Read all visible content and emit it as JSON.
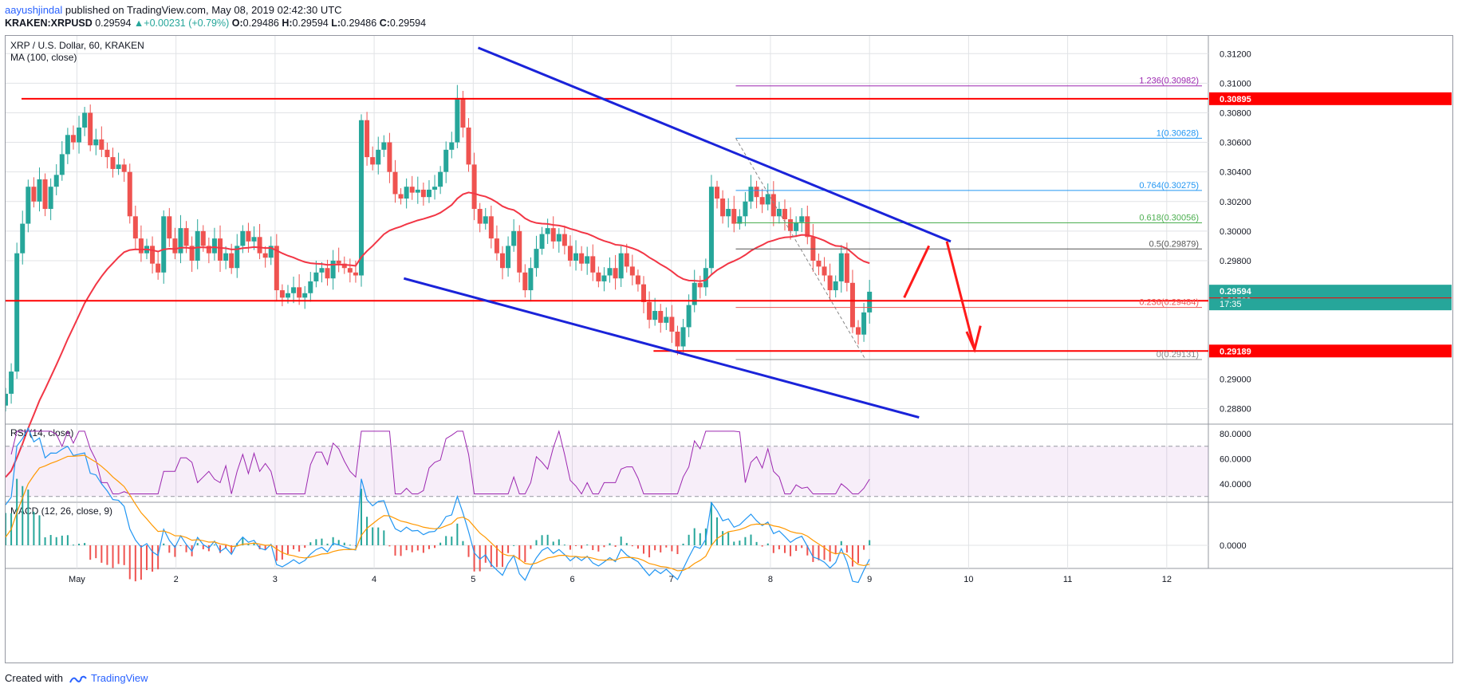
{
  "header": {
    "publisher": "aayushjindal",
    "published_text": "published on TradingView.com, May 08, 2019 02:42:30 UTC",
    "symbol": "KRAKEN:XRPUSD",
    "last": "0.29594",
    "change": "+0.00231 (+0.79%)",
    "ohlc_o_label": "O:",
    "ohlc_o": "0.29486",
    "ohlc_h_label": "H:",
    "ohlc_h": "0.29594",
    "ohlc_l_label": "L:",
    "ohlc_l": "0.29486",
    "ohlc_c_label": "C:",
    "ohlc_c": "0.29594"
  },
  "footer": {
    "created_with": "Created with",
    "brand": "TradingView"
  },
  "colors": {
    "bull": "#26a69a",
    "bear": "#ef5350",
    "ma": "#f23645",
    "channel": "#1a23d9",
    "support": "#ff0000",
    "fib": "#8896a5",
    "rsi": "#9c27b0",
    "macd": "#2196f3",
    "signal": "#ff9800",
    "grid": "#e1e3e6"
  },
  "chart_data": {
    "type": "candlestick",
    "title": "XRP / U.S. Dollar, 60, KRAKEN",
    "indicator_label": "MA (100, close)",
    "x_ticks": [
      "May",
      "2",
      "3",
      "4",
      "5",
      "6",
      "7",
      "8",
      "9",
      "10",
      "11",
      "12"
    ],
    "y_range": [
      0.287,
      0.3132
    ],
    "y_ticks": [
      "0.31200",
      "0.31000",
      "0.30800",
      "0.30600",
      "0.30400",
      "0.30200",
      "0.30000",
      "0.29800",
      "0.29000",
      "0.28800"
    ],
    "x_range_days": [
      -0.72,
      11.42
    ],
    "candles_x_days": [
      -0.72,
      3.99
    ],
    "candles_close": [
      0.289,
      0.2905,
      0.2985,
      0.3005,
      0.303,
      0.302,
      0.3035,
      0.3015,
      0.303,
      0.3038,
      0.3052,
      0.3065,
      0.306,
      0.307,
      0.308,
      0.3058,
      0.3062,
      0.3055,
      0.305,
      0.3042,
      0.3045,
      0.304,
      0.301,
      0.2995,
      0.2985,
      0.299,
      0.2978,
      0.2972,
      0.301,
      0.2995,
      0.2985,
      0.3002,
      0.299,
      0.298,
      0.3,
      0.299,
      0.2985,
      0.2995,
      0.298,
      0.2985,
      0.2975,
      0.299,
      0.3,
      0.2993,
      0.2996,
      0.2985,
      0.2982,
      0.299,
      0.296,
      0.2955,
      0.2958,
      0.2962,
      0.2955,
      0.2958,
      0.2966,
      0.2972,
      0.2975,
      0.2968,
      0.298,
      0.2978,
      0.2975,
      0.2972,
      0.297,
      0.3075,
      0.305,
      0.3045,
      0.3055,
      0.306,
      0.304,
      0.3025,
      0.3022,
      0.303,
      0.3026,
      0.3028,
      0.3023,
      0.3028,
      0.303,
      0.304,
      0.3055,
      0.306,
      0.309,
      0.307,
      0.3045,
      0.3015,
      0.3005,
      0.301,
      0.2995,
      0.2985,
      0.2975,
      0.299,
      0.3,
      0.2972,
      0.296,
      0.2975,
      0.2988,
      0.2998,
      0.3002,
      0.2993,
      0.2998,
      0.299,
      0.298,
      0.2985,
      0.2978,
      0.2983,
      0.2972,
      0.2966,
      0.297,
      0.2975,
      0.2968,
      0.2985,
      0.2976,
      0.297,
      0.2964,
      0.2952,
      0.294,
      0.2946,
      0.2938,
      0.2942,
      0.2932,
      0.2922,
      0.2935,
      0.295,
      0.2965,
      0.2962,
      0.2975,
      0.303,
      0.3022,
      0.301,
      0.3015,
      0.3005,
      0.301,
      0.302,
      0.303,
      0.3023,
      0.3018,
      0.3025,
      0.301,
      0.3015,
      0.3008,
      0.3,
      0.3006,
      0.301,
      0.2996,
      0.298,
      0.2976,
      0.297,
      0.296,
      0.2966,
      0.2985,
      0.2965,
      0.2935,
      0.293,
      0.2945,
      0.2959
    ],
    "candles_close_8th": [
      0.2935,
      0.293,
      0.2945,
      0.2959
    ],
    "ma_label": "MA (100, close)",
    "horizontal_levels": [
      {
        "value": 0.30895,
        "label": "0.30895"
      },
      {
        "value": 0.29529,
        "label": "0.29529"
      },
      {
        "value": 0.29189,
        "label": "0.29189"
      }
    ],
    "last_price_label": "0.29594",
    "countdown_label": "17:35",
    "fib_levels": [
      {
        "ratio": "1.236",
        "value": 0.30982,
        "label": "1.236(0.30982)"
      },
      {
        "ratio": "1",
        "value": 0.30628,
        "label": "1(0.30628)"
      },
      {
        "ratio": "0.764",
        "value": 0.30275,
        "label": "0.764(0.30275)"
      },
      {
        "ratio": "0.618",
        "value": 0.30056,
        "label": "0.618(0.30056)"
      },
      {
        "ratio": "0.5",
        "value": 0.29879,
        "label": "0.5(0.29879)"
      },
      {
        "ratio": "0.236",
        "value": 0.29484,
        "label": "0.236(0.29484)"
      },
      {
        "ratio": "0",
        "value": 0.29131,
        "label": "0(0.29131)"
      }
    ],
    "channel_lines": [
      {
        "from": [
          4.05,
          0.3124
        ],
        "to": [
          8.82,
          0.2993
        ]
      },
      {
        "from": [
          3.3,
          0.2968
        ],
        "to": [
          8.5,
          0.2874
        ]
      }
    ],
    "rsi": {
      "label": "RSI (14, close)",
      "y_ticks": [
        "80.0000",
        "60.0000",
        "40.0000"
      ],
      "y_range": [
        26,
        87
      ],
      "upper": 70,
      "lower": 30
    },
    "macd": {
      "label": "MACD (12, 26, close, 9)",
      "y_ticks": [
        "0.0000"
      ]
    }
  }
}
